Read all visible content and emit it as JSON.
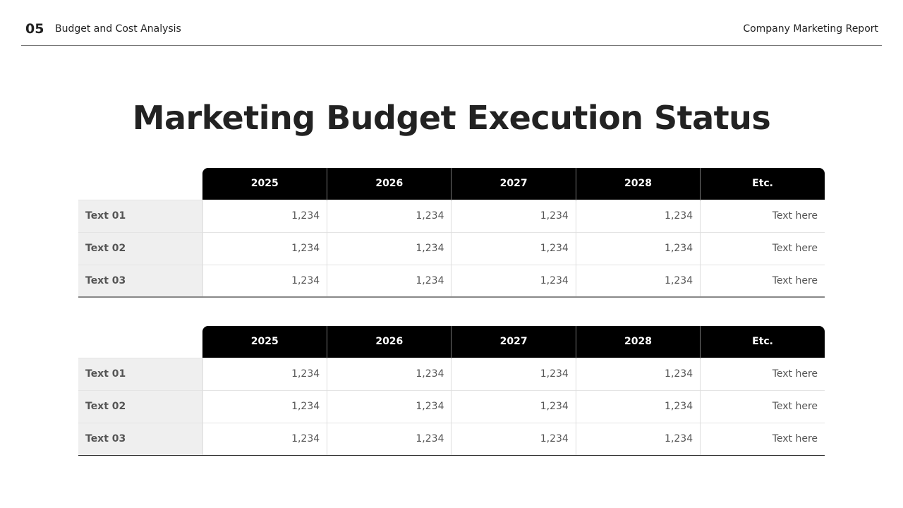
{
  "header": {
    "section_number": "05",
    "section_title": "Budget and Cost Analysis",
    "report_title": "Company Marketing Report"
  },
  "title": "Marketing Budget Execution Status",
  "tables": [
    {
      "columns": [
        "2025",
        "2026",
        "2027",
        "2028",
        "Etc."
      ],
      "rows": [
        {
          "label": "Text 01",
          "values": [
            "1,234",
            "1,234",
            "1,234",
            "1,234",
            "Text here"
          ]
        },
        {
          "label": "Text 02",
          "values": [
            "1,234",
            "1,234",
            "1,234",
            "1,234",
            "Text here"
          ]
        },
        {
          "label": "Text 03",
          "values": [
            "1,234",
            "1,234",
            "1,234",
            "1,234",
            "Text here"
          ]
        }
      ]
    },
    {
      "columns": [
        "2025",
        "2026",
        "2027",
        "2028",
        "Etc."
      ],
      "rows": [
        {
          "label": "Text 01",
          "values": [
            "1,234",
            "1,234",
            "1,234",
            "1,234",
            "Text here"
          ]
        },
        {
          "label": "Text 02",
          "values": [
            "1,234",
            "1,234",
            "1,234",
            "1,234",
            "Text here"
          ]
        },
        {
          "label": "Text 03",
          "values": [
            "1,234",
            "1,234",
            "1,234",
            "1,234",
            "Text here"
          ]
        }
      ]
    }
  ]
}
